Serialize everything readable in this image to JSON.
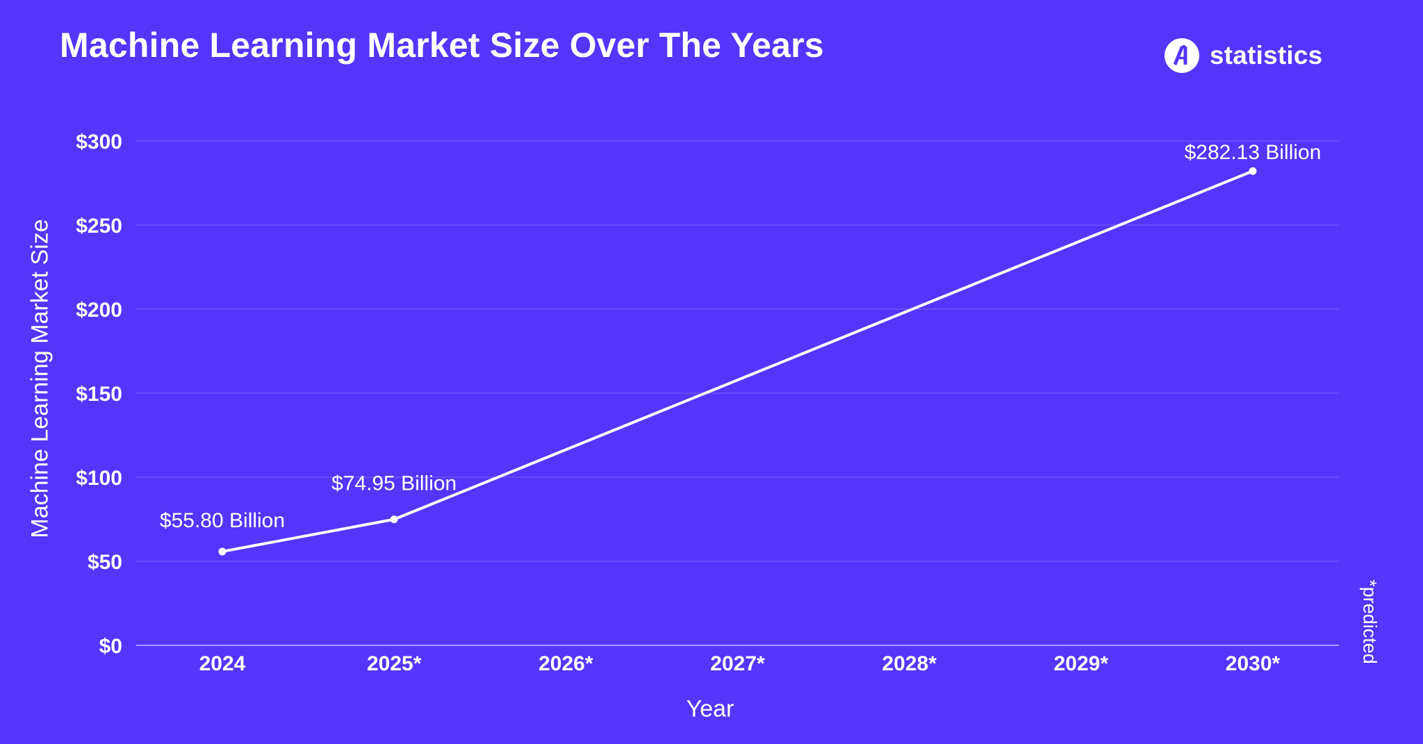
{
  "header": {
    "title": "Machine Learning Market Size Over The Years",
    "brand": "statistics"
  },
  "colors": {
    "background": "#5535FA",
    "text": "#FFFFFF",
    "series_line": "#FFFFFF",
    "gridline": "rgba(255,255,255,0.16)",
    "axis_line": "rgba(255,255,255,0.48)",
    "logo_circle": "#FFFFFF",
    "logo_glyph": "#5535FA"
  },
  "chart_data": {
    "type": "line",
    "title": "Machine Learning Market Size Over The Years",
    "xlabel": "Year",
    "ylabel": "Machine Learning Market Size",
    "annotation": "*predicted",
    "categories": [
      "2024",
      "2025*",
      "2026*",
      "2027*",
      "2028*",
      "2029*",
      "2030*"
    ],
    "ylim": [
      0,
      300
    ],
    "yticks": [
      {
        "label": "$0",
        "value": 0
      },
      {
        "label": "$50",
        "value": 50
      },
      {
        "label": "$100",
        "value": 100
      },
      {
        "label": "$150",
        "value": 150
      },
      {
        "label": "$200",
        "value": 200
      },
      {
        "label": "$250",
        "value": 250
      },
      {
        "label": "$300",
        "value": 300
      }
    ],
    "grid": true,
    "legend": false,
    "series": [
      {
        "points": [
          {
            "category": "2024",
            "value": 55.8,
            "label": "$55.80 Billion"
          },
          {
            "category": "2025*",
            "value": 74.95,
            "label": "$74.95 Billion"
          },
          {
            "category": "2030*",
            "value": 282.13,
            "label": "$282.13 Billion"
          }
        ]
      }
    ]
  }
}
